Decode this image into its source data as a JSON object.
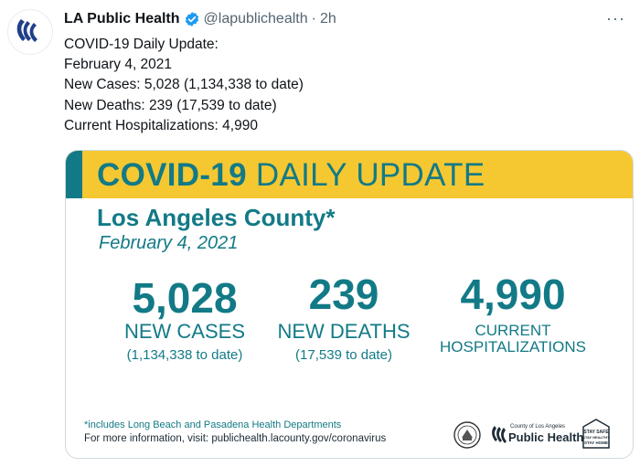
{
  "account": {
    "name": "LA Public Health",
    "handle": "@lapublichealth",
    "separator": "·",
    "time": "2h",
    "more": "···"
  },
  "tweet": {
    "lines": [
      "COVID-19 Daily Update:",
      "February 4, 2021",
      "New Cases: 5,028 (1,134,338 to date)",
      "New Deaths: 239 (17,539 to date)",
      "Current Hospitalizations: 4,990"
    ]
  },
  "card": {
    "title_bold": "COVID-19",
    "title_rest": "DAILY UPDATE",
    "county": "Los Angeles County*",
    "date": "February 4, 2021",
    "stats": {
      "cases": {
        "value": "5,028",
        "label": "NEW CASES",
        "sub": "(1,134,338 to date)"
      },
      "deaths": {
        "value": "239",
        "label": "NEW DEATHS",
        "sub": "(17,539 to date)"
      },
      "hospitalizations": {
        "value": "4,990",
        "label_line1": "CURRENT",
        "label_line2": "HOSPITALIZATIONS"
      }
    },
    "footnote": "*includes Long Beach and Pasadena Health Departments",
    "more_info": "For more information, visit: publichealth.lacounty.gov/coronavirus",
    "logos": {
      "ph_small": "County of Los Angeles",
      "ph_big": "Public Health",
      "staysafe": [
        "STAY SAFE",
        "STAY HEALTHY",
        "STAY HOME"
      ]
    }
  },
  "colors": {
    "teal": "#127a86",
    "yellow": "#f5c832",
    "verified_blue": "#1d9bf0"
  }
}
